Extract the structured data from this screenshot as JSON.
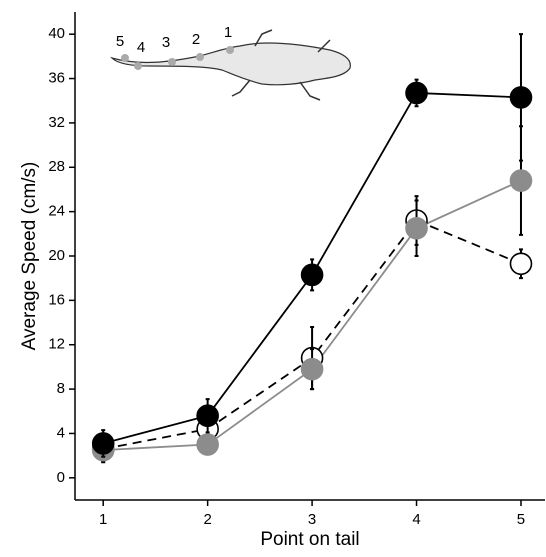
{
  "chart_data": {
    "type": "line",
    "x_label": "Point on tail",
    "y_label": "Average Speed (cm/s)",
    "x": [
      1,
      2,
      3,
      4,
      5
    ],
    "series": [
      {
        "color": "#000000",
        "marker": "open",
        "dashed": true,
        "values": [
          2.6,
          4.4,
          10.8,
          23.2,
          19.3
        ],
        "error": [
          1.2,
          1.0,
          2.8,
          2.2,
          1.3
        ]
      },
      {
        "color": "#8c8c8c",
        "marker": "filled",
        "dashed": false,
        "values": [
          2.5,
          3.0,
          9.8,
          22.5,
          26.8
        ],
        "error": [
          1.0,
          0.5,
          1.8,
          2.5,
          4.9
        ]
      },
      {
        "color": "#000000",
        "marker": "filled",
        "dashed": false,
        "values": [
          3.1,
          5.6,
          18.3,
          34.7,
          34.3
        ],
        "error": [
          1.2,
          1.5,
          1.4,
          1.2,
          5.7
        ]
      }
    ],
    "xlim": [
      0.73,
      5.23
    ],
    "ylim": [
      -2,
      42
    ],
    "xticks": [
      1,
      2,
      3,
      4,
      5
    ],
    "yticks": [
      0,
      4,
      8,
      12,
      16,
      20,
      24,
      28,
      32,
      36,
      40
    ],
    "inset_labels": [
      "5",
      "4",
      "3",
      "2",
      "1"
    ]
  }
}
